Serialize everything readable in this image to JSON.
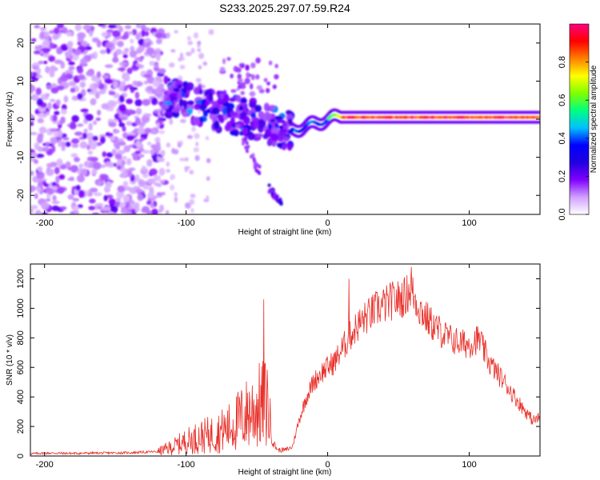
{
  "title": "S233.2025.297.07.59.R24",
  "chart_data": [
    {
      "type": "heatmap",
      "name": "spectrogram",
      "xlabel": "Height of straight line (km)",
      "ylabel": "Frequency (Hz)",
      "xlim": [
        -210,
        150
      ],
      "ylim": [
        -25,
        25
      ],
      "xticks": [
        -200,
        -100,
        0,
        100
      ],
      "yticks": [
        -20,
        -10,
        0,
        10,
        20
      ],
      "colorbar": {
        "label": "Normalized spectral amplitude",
        "range": [
          0,
          1
        ],
        "ticks": [
          0.0,
          0.2,
          0.4,
          0.6,
          0.8
        ],
        "colormap": [
          "#ffffff",
          "#d0a0ff",
          "#8000ff",
          "#2000e0",
          "#0000ff",
          "#00c0ff",
          "#00ff80",
          "#80ff00",
          "#ffff00",
          "#ff8000",
          "#ff0000",
          "#ff0080"
        ]
      },
      "features": [
        {
          "region": "noise",
          "x": [
            -210,
            -115
          ],
          "f": [
            -25,
            25
          ],
          "amplitude": 0.1
        },
        {
          "region": "onset",
          "x": [
            -115,
            -25
          ],
          "f_center_start": 6,
          "f_center_end": -3,
          "amplitude": 0.35
        },
        {
          "region": "stable line",
          "x": [
            -25,
            150
          ],
          "f_center": 0.5,
          "amplitude": 0.9
        },
        {
          "region": "side branch",
          "x": [
            -42,
            -32
          ],
          "f": [
            -18,
            -22
          ],
          "amplitude": 0.4
        }
      ]
    },
    {
      "type": "line",
      "name": "snr",
      "xlabel": "Height of straight line (km)",
      "ylabel": "SNR (10 * v/v)",
      "xlim": [
        -210,
        150
      ],
      "ylim": [
        0,
        1300
      ],
      "xticks": [
        -200,
        -100,
        0,
        100
      ],
      "yticks": [
        0,
        200,
        400,
        600,
        800,
        1000,
        1200
      ],
      "color": "#e8302a",
      "series": [
        {
          "name": "SNR",
          "x": [
            -210,
            -200,
            -180,
            -160,
            -140,
            -120,
            -110,
            -100,
            -90,
            -80,
            -70,
            -60,
            -55,
            -50,
            -45,
            -42,
            -40,
            -38,
            -35,
            -30,
            -25,
            -20,
            -15,
            -10,
            -5,
            0,
            5,
            10,
            15,
            20,
            25,
            30,
            35,
            40,
            45,
            50,
            55,
            58,
            60,
            65,
            70,
            75,
            80,
            85,
            90,
            95,
            100,
            105,
            108,
            110,
            115,
            120,
            125,
            130,
            135,
            140,
            145,
            150
          ],
          "y": [
            15,
            20,
            18,
            20,
            22,
            30,
            60,
            100,
            130,
            150,
            190,
            260,
            300,
            330,
            350,
            360,
            150,
            80,
            40,
            40,
            60,
            250,
            400,
            500,
            560,
            600,
            640,
            720,
            800,
            870,
            920,
            960,
            1000,
            1020,
            1050,
            1060,
            1080,
            1130,
            1100,
            1000,
            930,
            880,
            840,
            800,
            780,
            760,
            760,
            790,
            780,
            720,
            620,
            560,
            500,
            430,
            360,
            300,
            240,
            260
          ],
          "peaks": [
            {
              "x": -45,
              "y": 1060
            },
            {
              "x": 59,
              "y": 1280
            },
            {
              "x": 15,
              "y": 1200
            }
          ]
        }
      ]
    }
  ]
}
